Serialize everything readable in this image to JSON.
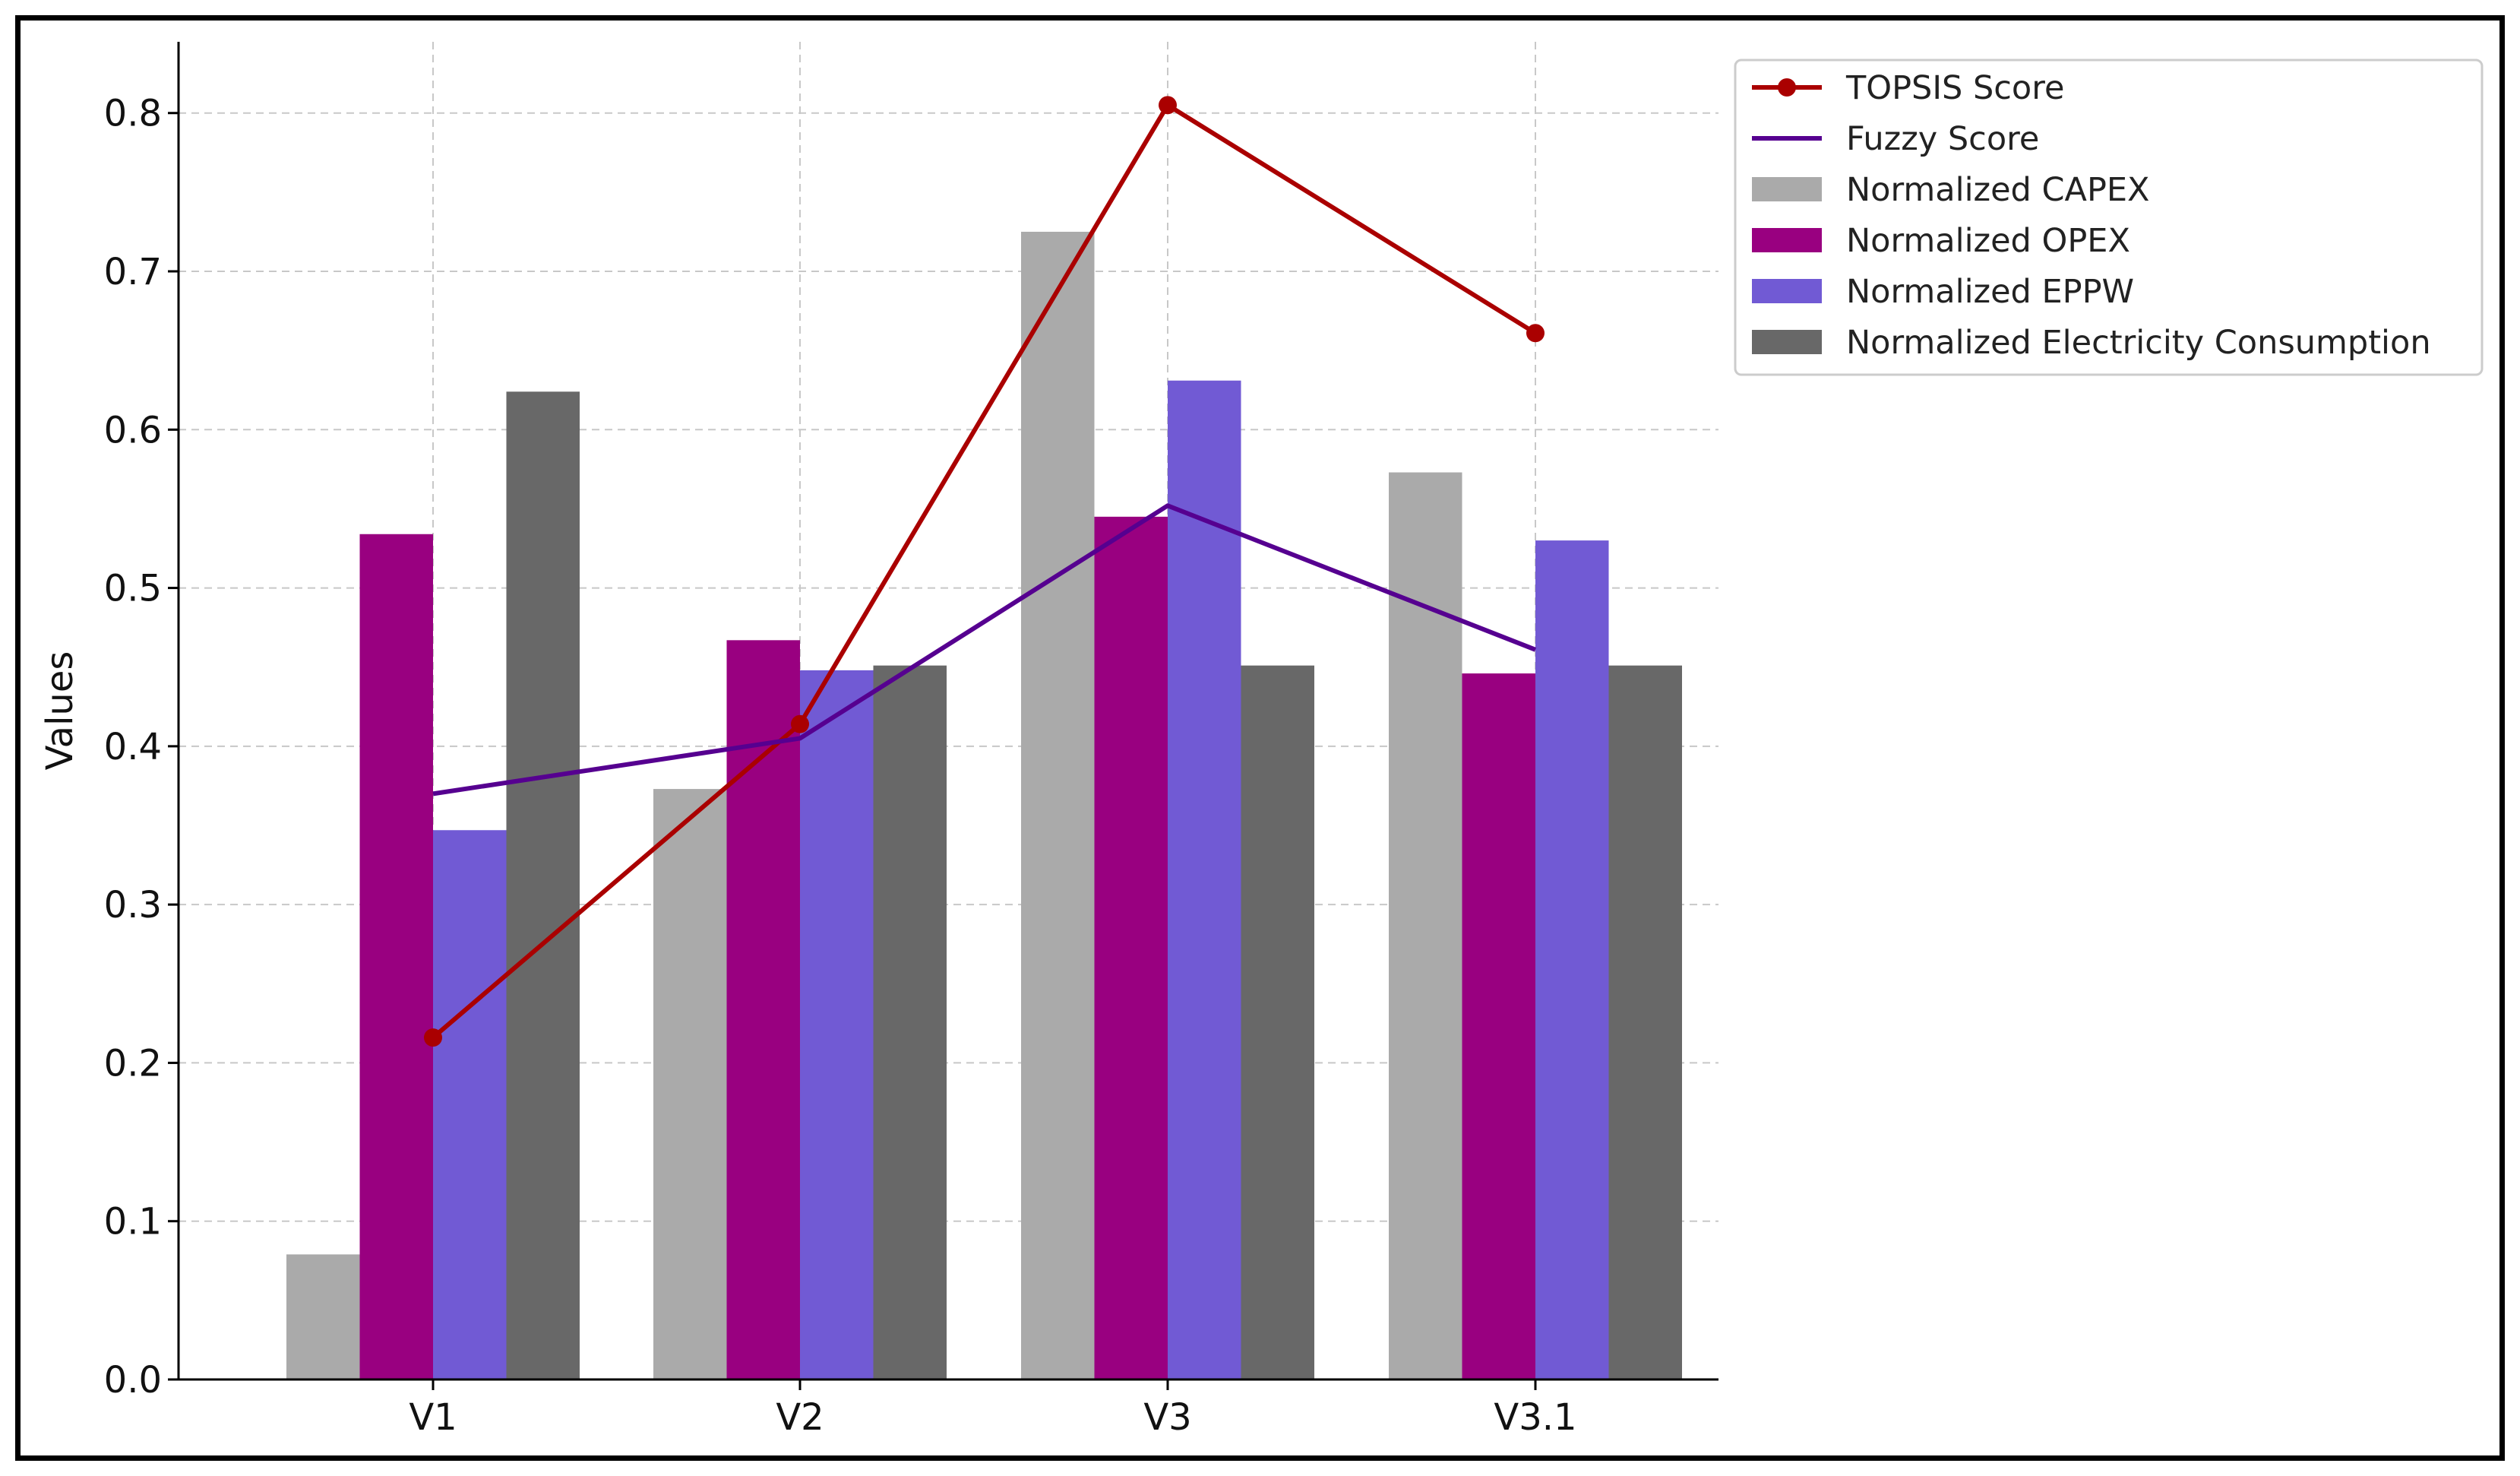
{
  "chart_data": {
    "type": "bar",
    "categories": [
      "V1",
      "V2",
      "V3",
      "V3.1"
    ],
    "ylabel": "Values",
    "xlabel": "",
    "ylim": [
      0,
      0.845
    ],
    "yticks": [
      "0.0",
      "0.1",
      "0.2",
      "0.3",
      "0.4",
      "0.5",
      "0.6",
      "0.7",
      "0.8"
    ],
    "grid": true,
    "legend_position": "top-right",
    "bar_series": [
      {
        "name": "Normalized CAPEX",
        "color": "#aaaaaa",
        "values": [
          0.079,
          0.373,
          0.725,
          0.573
        ]
      },
      {
        "name": "Normalized OPEX",
        "color": "#990080",
        "values": [
          0.534,
          0.467,
          0.545,
          0.446
        ]
      },
      {
        "name": "Normalized EPPW",
        "color": "#715ad4",
        "values": [
          0.347,
          0.448,
          0.631,
          0.53
        ]
      },
      {
        "name": "Normalized Electricity Consumption",
        "color": "#686868",
        "values": [
          0.624,
          0.451,
          0.451,
          0.451
        ]
      }
    ],
    "line_series": [
      {
        "name": "TOPSIS Score",
        "color": "#aa0000",
        "marker": "circle",
        "values": [
          0.216,
          0.414,
          0.805,
          0.661
        ]
      },
      {
        "name": "Fuzzy Score",
        "color": "#560090",
        "marker": "none",
        "values": [
          0.37,
          0.405,
          0.552,
          0.461
        ]
      }
    ],
    "legend_order": [
      "TOPSIS Score",
      "Fuzzy Score",
      "Normalized CAPEX",
      "Normalized OPEX",
      "Normalized EPPW",
      "Normalized Electricity Consumption"
    ]
  }
}
